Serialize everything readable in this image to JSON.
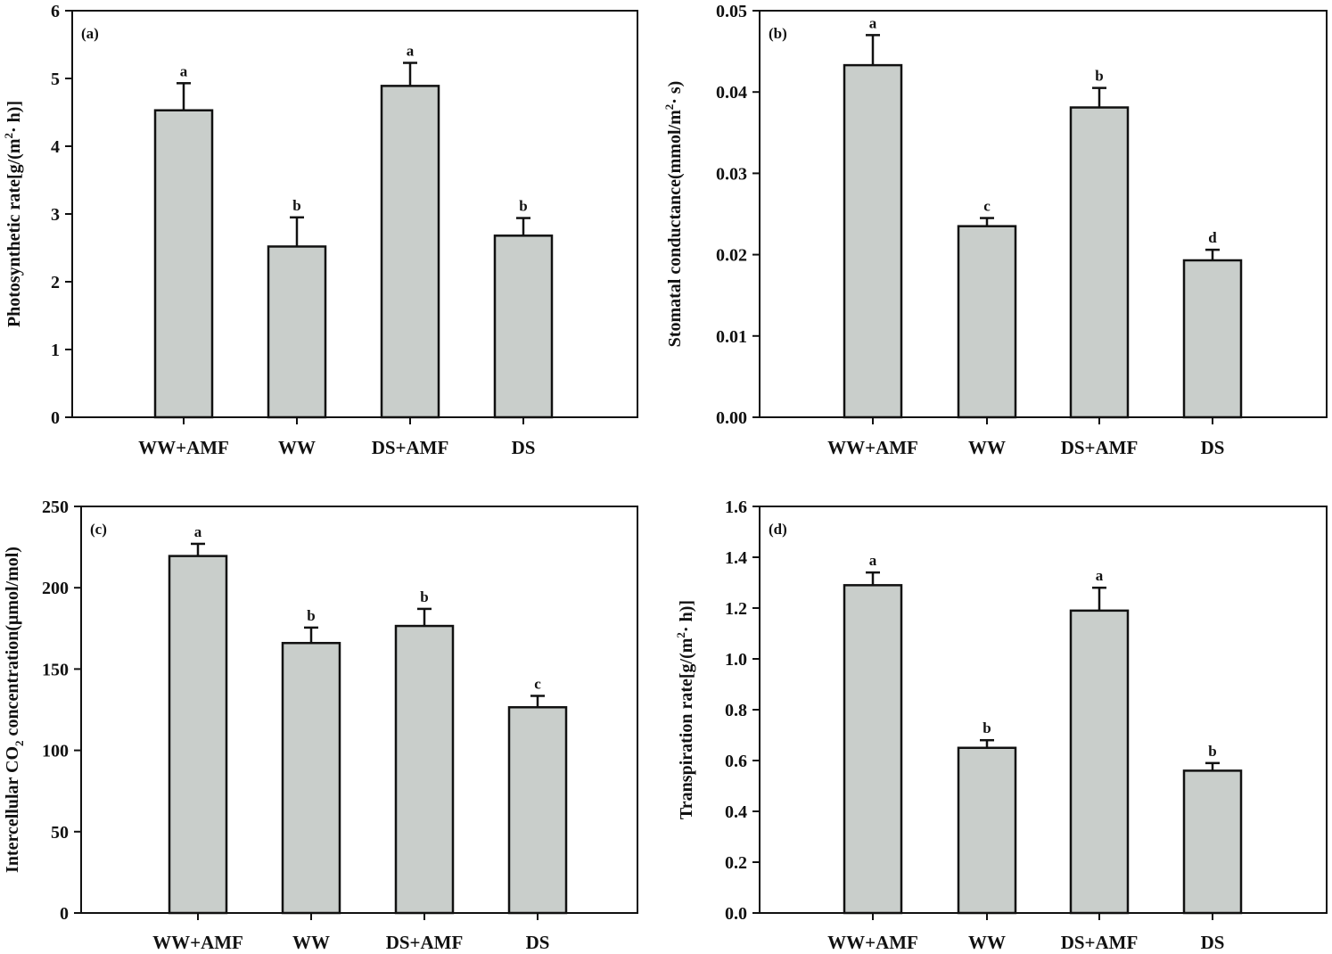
{
  "chart_data": [
    {
      "type": "bar",
      "panel_label": "(a)",
      "ylabel_parts": [
        "Photosynthetic rate[g/(m",
        "2",
        "· h)]"
      ],
      "categories": [
        "WW+AMF",
        "WW",
        "DS+AMF",
        "DS"
      ],
      "values": [
        4.53,
        2.52,
        4.89,
        2.68
      ],
      "errors": [
        0.4,
        0.43,
        0.34,
        0.26
      ],
      "letters": [
        "a",
        "b",
        "a",
        "b"
      ],
      "ylim": [
        0,
        6
      ],
      "ticks": [
        0,
        1,
        2,
        3,
        4,
        5,
        6
      ],
      "tick_labels": [
        "0",
        "1",
        "2",
        "3",
        "4",
        "5",
        "6"
      ],
      "bar_color": "#c9cecb"
    },
    {
      "type": "bar",
      "panel_label": "(b)",
      "ylabel_parts": [
        "Stomatal conductance(mmol/m",
        "2",
        "· s)"
      ],
      "categories": [
        "WW+AMF",
        "WW",
        "DS+AMF",
        "DS"
      ],
      "values": [
        0.0433,
        0.0235,
        0.0381,
        0.0193
      ],
      "errors": [
        0.0037,
        0.001,
        0.0024,
        0.0013
      ],
      "letters": [
        "a",
        "c",
        "b",
        "d"
      ],
      "ylim": [
        0,
        0.05
      ],
      "ticks": [
        0,
        0.01,
        0.02,
        0.03,
        0.04,
        0.05
      ],
      "tick_labels": [
        "0.00",
        "0.01",
        "0.02",
        "0.03",
        "0.04",
        "0.05"
      ],
      "bar_color": "#c9cecb"
    },
    {
      "type": "bar",
      "panel_label": "(c)",
      "ylabel_parts": [
        "Intercellular CO",
        "2",
        " concentration(μmol/mol)"
      ],
      "categories": [
        "WW+AMF",
        "WW",
        "DS+AMF",
        "DS"
      ],
      "values": [
        219.5,
        166,
        176.5,
        126.5
      ],
      "errors": [
        7.5,
        9.5,
        10.5,
        7
      ],
      "letters": [
        "a",
        "b",
        "b",
        "c"
      ],
      "ylim": [
        0,
        250
      ],
      "ticks": [
        0,
        50,
        100,
        150,
        200,
        250
      ],
      "tick_labels": [
        "0",
        "50",
        "100",
        "150",
        "200",
        "250"
      ],
      "bar_color": "#c9cecb"
    },
    {
      "type": "bar",
      "panel_label": "(d)",
      "ylabel_parts": [
        "Transpiration rate[g/(m",
        "2",
        "· h)]"
      ],
      "categories": [
        "WW+AMF",
        "WW",
        "DS+AMF",
        "DS"
      ],
      "values": [
        1.29,
        0.65,
        1.19,
        0.56
      ],
      "errors": [
        0.05,
        0.03,
        0.09,
        0.03
      ],
      "letters": [
        "a",
        "b",
        "a",
        "b"
      ],
      "ylim": [
        0,
        1.6
      ],
      "ticks": [
        0,
        0.2,
        0.4,
        0.6,
        0.8,
        1.0,
        1.2,
        1.4,
        1.6
      ],
      "tick_labels": [
        "0.0",
        "0.2",
        "0.4",
        "0.6",
        "0.8",
        "1.0",
        "1.2",
        "1.4",
        "1.6"
      ],
      "bar_color": "#c9cecb"
    }
  ]
}
